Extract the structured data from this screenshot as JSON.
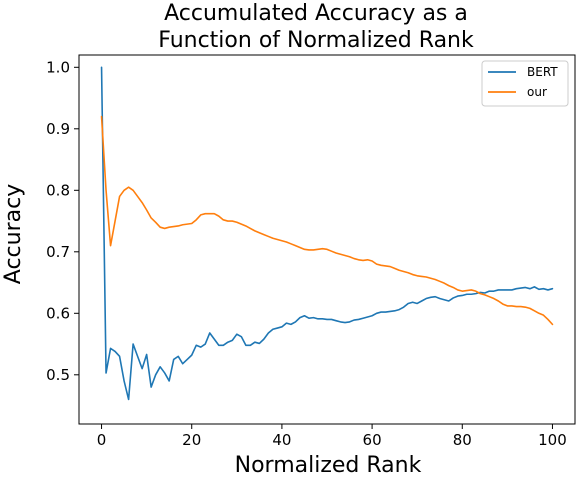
{
  "chart_data": {
    "type": "line",
    "title": [
      "Accumulated Accuracy as a",
      "Function of Normalized Rank"
    ],
    "xlabel": "Normalized Rank",
    "ylabel": "Accuracy",
    "xlim": [
      -5,
      105
    ],
    "ylim": [
      0.42,
      1.02
    ],
    "xticks": [
      0,
      20,
      40,
      60,
      80,
      100
    ],
    "yticks": [
      0.5,
      0.6,
      0.7,
      0.8,
      0.9,
      1.0
    ],
    "ytick_labels": [
      "0.5",
      "0.6",
      "0.7",
      "0.8",
      "0.9",
      "1.0"
    ],
    "grid": false,
    "legend_position": "top-right",
    "series": [
      {
        "name": "BERT",
        "color": "#1f77b4",
        "x": [
          0,
          1,
          2,
          3,
          4,
          5,
          6,
          7,
          8,
          9,
          10,
          11,
          12,
          13,
          14,
          15,
          16,
          17,
          18,
          19,
          20,
          21,
          22,
          23,
          24,
          25,
          26,
          27,
          28,
          29,
          30,
          31,
          32,
          33,
          34,
          35,
          36,
          37,
          38,
          39,
          40,
          41,
          42,
          43,
          44,
          45,
          46,
          47,
          48,
          49,
          50,
          51,
          52,
          53,
          54,
          55,
          56,
          57,
          58,
          59,
          60,
          61,
          62,
          63,
          64,
          65,
          66,
          67,
          68,
          69,
          70,
          71,
          72,
          73,
          74,
          75,
          76,
          77,
          78,
          79,
          80,
          81,
          82,
          83,
          84,
          85,
          86,
          87,
          88,
          89,
          90,
          91,
          92,
          93,
          94,
          95,
          96,
          97,
          98,
          99,
          100
        ],
        "values": [
          1.0,
          0.503,
          0.543,
          0.538,
          0.53,
          0.49,
          0.46,
          0.55,
          0.53,
          0.51,
          0.533,
          0.48,
          0.5,
          0.513,
          0.503,
          0.49,
          0.525,
          0.53,
          0.518,
          0.525,
          0.532,
          0.548,
          0.545,
          0.55,
          0.568,
          0.558,
          0.548,
          0.548,
          0.553,
          0.556,
          0.566,
          0.562,
          0.548,
          0.548,
          0.553,
          0.551,
          0.558,
          0.568,
          0.574,
          0.576,
          0.578,
          0.584,
          0.582,
          0.586,
          0.593,
          0.596,
          0.592,
          0.593,
          0.591,
          0.591,
          0.59,
          0.59,
          0.588,
          0.586,
          0.585,
          0.586,
          0.589,
          0.59,
          0.592,
          0.594,
          0.596,
          0.6,
          0.602,
          0.602,
          0.603,
          0.604,
          0.606,
          0.61,
          0.616,
          0.618,
          0.616,
          0.62,
          0.624,
          0.626,
          0.627,
          0.624,
          0.622,
          0.62,
          0.625,
          0.628,
          0.629,
          0.631,
          0.631,
          0.632,
          0.634,
          0.633,
          0.636,
          0.636,
          0.638,
          0.638,
          0.638,
          0.638,
          0.64,
          0.641,
          0.642,
          0.64,
          0.643,
          0.639,
          0.64,
          0.638,
          0.64
        ]
      },
      {
        "name": "our",
        "color": "#ff7f0e",
        "x": [
          0,
          1,
          2,
          3,
          4,
          5,
          6,
          7,
          8,
          9,
          10,
          11,
          12,
          13,
          14,
          15,
          16,
          17,
          18,
          19,
          20,
          21,
          22,
          23,
          24,
          25,
          26,
          27,
          28,
          29,
          30,
          31,
          32,
          33,
          34,
          35,
          36,
          37,
          38,
          39,
          40,
          41,
          42,
          43,
          44,
          45,
          46,
          47,
          48,
          49,
          50,
          51,
          52,
          53,
          54,
          55,
          56,
          57,
          58,
          59,
          60,
          61,
          62,
          63,
          64,
          65,
          66,
          67,
          68,
          69,
          70,
          71,
          72,
          73,
          74,
          75,
          76,
          77,
          78,
          79,
          80,
          81,
          82,
          83,
          84,
          85,
          86,
          87,
          88,
          89,
          90,
          91,
          92,
          93,
          94,
          95,
          96,
          97,
          98,
          99,
          100
        ],
        "values": [
          0.92,
          0.8,
          0.71,
          0.75,
          0.79,
          0.8,
          0.805,
          0.8,
          0.79,
          0.78,
          0.768,
          0.755,
          0.748,
          0.74,
          0.738,
          0.74,
          0.741,
          0.742,
          0.744,
          0.745,
          0.746,
          0.752,
          0.76,
          0.762,
          0.762,
          0.762,
          0.758,
          0.752,
          0.75,
          0.75,
          0.748,
          0.745,
          0.742,
          0.738,
          0.734,
          0.731,
          0.728,
          0.725,
          0.722,
          0.72,
          0.718,
          0.716,
          0.713,
          0.71,
          0.707,
          0.704,
          0.703,
          0.703,
          0.704,
          0.705,
          0.704,
          0.701,
          0.698,
          0.696,
          0.694,
          0.692,
          0.689,
          0.687,
          0.686,
          0.687,
          0.685,
          0.68,
          0.678,
          0.677,
          0.676,
          0.673,
          0.67,
          0.668,
          0.666,
          0.663,
          0.661,
          0.66,
          0.659,
          0.657,
          0.655,
          0.652,
          0.649,
          0.645,
          0.642,
          0.638,
          0.636,
          0.637,
          0.638,
          0.636,
          0.632,
          0.63,
          0.627,
          0.624,
          0.62,
          0.615,
          0.612,
          0.612,
          0.611,
          0.611,
          0.61,
          0.608,
          0.604,
          0.6,
          0.597,
          0.59,
          0.582
        ]
      }
    ]
  }
}
